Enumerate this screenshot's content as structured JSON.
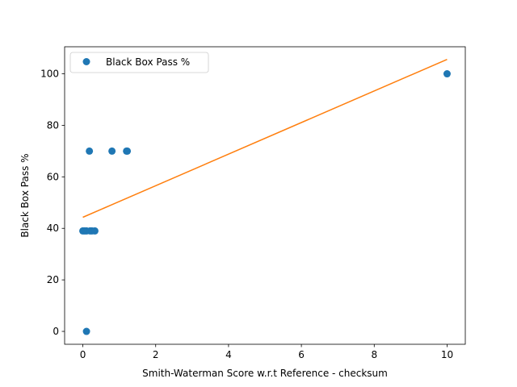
{
  "chart_data": {
    "type": "scatter",
    "title": "",
    "xlabel": "Smith-Waterman Score w.r.t Reference - checksum",
    "ylabel": "Black Box Pass %",
    "xlim": [
      -0.5,
      10.5
    ],
    "ylim": [
      -5,
      110.5
    ],
    "xticks": [
      0,
      2,
      4,
      6,
      8,
      10
    ],
    "yticks": [
      0,
      20,
      40,
      60,
      80,
      100
    ],
    "xtick_labels": [
      "0",
      "2",
      "4",
      "6",
      "8",
      "10"
    ],
    "ytick_labels": [
      "0",
      "20",
      "40",
      "60",
      "80",
      "100"
    ],
    "grid": false,
    "legend_position": "top-left",
    "series": [
      {
        "name": "Black Box Pass %",
        "kind": "scatter",
        "color": "#1f77b4",
        "points": [
          {
            "x": 0.0,
            "y": 39
          },
          {
            "x": 0.05,
            "y": 39
          },
          {
            "x": 0.1,
            "y": 39
          },
          {
            "x": 0.2,
            "y": 39
          },
          {
            "x": 0.25,
            "y": 39
          },
          {
            "x": 0.33,
            "y": 39
          },
          {
            "x": 0.1,
            "y": 0
          },
          {
            "x": 0.18,
            "y": 70
          },
          {
            "x": 0.8,
            "y": 70
          },
          {
            "x": 1.2,
            "y": 70
          },
          {
            "x": 1.22,
            "y": 70
          },
          {
            "x": 10.0,
            "y": 100
          }
        ]
      },
      {
        "kind": "line",
        "color": "#ff7f0e",
        "points": [
          {
            "x": 0.0,
            "y": 44.3
          },
          {
            "x": 10.0,
            "y": 105.6
          }
        ]
      }
    ]
  }
}
